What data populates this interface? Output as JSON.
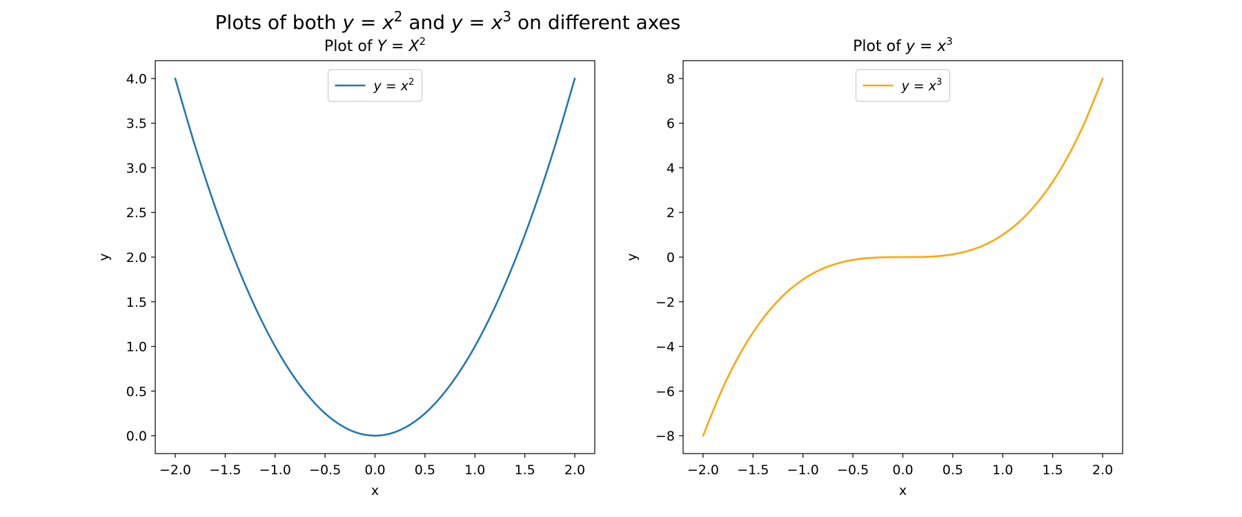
{
  "figure": {
    "title": {
      "parts": [
        {
          "t": "Plots of both "
        },
        {
          "t": "y",
          "i": true
        },
        {
          "t": " = "
        },
        {
          "t": "x",
          "i": true
        },
        {
          "t": "2",
          "sup": true
        },
        {
          "t": " and "
        },
        {
          "t": "y",
          "i": true
        },
        {
          "t": " = "
        },
        {
          "t": "x",
          "i": true
        },
        {
          "t": "3",
          "sup": true
        },
        {
          "t": " on different axes"
        }
      ]
    }
  },
  "chart_data": [
    {
      "type": "line",
      "title_parts": [
        {
          "t": "Plot of "
        },
        {
          "t": "Y",
          "i": true
        },
        {
          "t": " = "
        },
        {
          "t": "X",
          "i": true
        },
        {
          "t": "2",
          "sup": true
        }
      ],
      "xlabel": "x",
      "ylabel": "y",
      "xlim": [
        -2.2,
        2.2
      ],
      "ylim": [
        -0.2,
        4.2
      ],
      "xticks": [
        -2.0,
        -1.5,
        -1.0,
        -0.5,
        0.0,
        0.5,
        1.0,
        1.5,
        2.0
      ],
      "xtick_labels": [
        "−2.0",
        "−1.5",
        "−1.0",
        "−0.5",
        "0.0",
        "0.5",
        "1.0",
        "1.5",
        "2.0"
      ],
      "yticks": [
        0.0,
        0.5,
        1.0,
        1.5,
        2.0,
        2.5,
        3.0,
        3.5,
        4.0
      ],
      "ytick_labels": [
        "0.0",
        "0.5",
        "1.0",
        "1.5",
        "2.0",
        "2.5",
        "3.0",
        "3.5",
        "4.0"
      ],
      "grid": false,
      "legend_position": "upper center",
      "series": [
        {
          "legend_parts": [
            {
              "t": "y",
              "i": true
            },
            {
              "t": " = "
            },
            {
              "t": "x",
              "i": true
            },
            {
              "t": "2",
              "sup": true
            }
          ],
          "color": "#1f77b4",
          "x": [
            -2.0,
            -1.8,
            -1.6,
            -1.4,
            -1.2,
            -1.0,
            -0.8,
            -0.6,
            -0.4,
            -0.2,
            0.0,
            0.2,
            0.4,
            0.6,
            0.8,
            1.0,
            1.2,
            1.4,
            1.6,
            1.8,
            2.0
          ],
          "y": [
            4.0,
            3.24,
            2.56,
            1.96,
            1.44,
            1.0,
            0.64,
            0.36,
            0.16,
            0.04,
            0.0,
            0.04,
            0.16,
            0.36,
            0.64,
            1.0,
            1.44,
            1.96,
            2.56,
            3.24,
            4.0
          ]
        }
      ]
    },
    {
      "type": "line",
      "title_parts": [
        {
          "t": "Plot of "
        },
        {
          "t": "y",
          "i": true
        },
        {
          "t": " = "
        },
        {
          "t": "x",
          "i": true
        },
        {
          "t": "3",
          "sup": true
        }
      ],
      "xlabel": "x",
      "ylabel": "y",
      "xlim": [
        -2.2,
        2.2
      ],
      "ylim": [
        -8.8,
        8.8
      ],
      "xticks": [
        -2.0,
        -1.5,
        -1.0,
        -0.5,
        0.0,
        0.5,
        1.0,
        1.5,
        2.0
      ],
      "xtick_labels": [
        "−2.0",
        "−1.5",
        "−1.0",
        "−0.5",
        "0.0",
        "0.5",
        "1.0",
        "1.5",
        "2.0"
      ],
      "yticks": [
        -8,
        -6,
        -4,
        -2,
        0,
        2,
        4,
        6,
        8
      ],
      "ytick_labels": [
        "−8",
        "−6",
        "−4",
        "−2",
        "0",
        "2",
        "4",
        "6",
        "8"
      ],
      "grid": false,
      "legend_position": "upper center",
      "series": [
        {
          "legend_parts": [
            {
              "t": "y",
              "i": true
            },
            {
              "t": " = "
            },
            {
              "t": "x",
              "i": true
            },
            {
              "t": "3",
              "sup": true
            }
          ],
          "color": "#ffa500",
          "x": [
            -2.0,
            -1.8,
            -1.6,
            -1.4,
            -1.2,
            -1.0,
            -0.8,
            -0.6,
            -0.4,
            -0.2,
            0.0,
            0.2,
            0.4,
            0.6,
            0.8,
            1.0,
            1.2,
            1.4,
            1.6,
            1.8,
            2.0
          ],
          "y": [
            -8.0,
            -5.832,
            -4.096,
            -2.744,
            -1.728,
            -1.0,
            -0.512,
            -0.216,
            -0.064,
            -0.008,
            0.0,
            0.008,
            0.064,
            0.216,
            0.512,
            1.0,
            1.728,
            2.744,
            4.096,
            5.832,
            8.0
          ]
        }
      ]
    }
  ]
}
